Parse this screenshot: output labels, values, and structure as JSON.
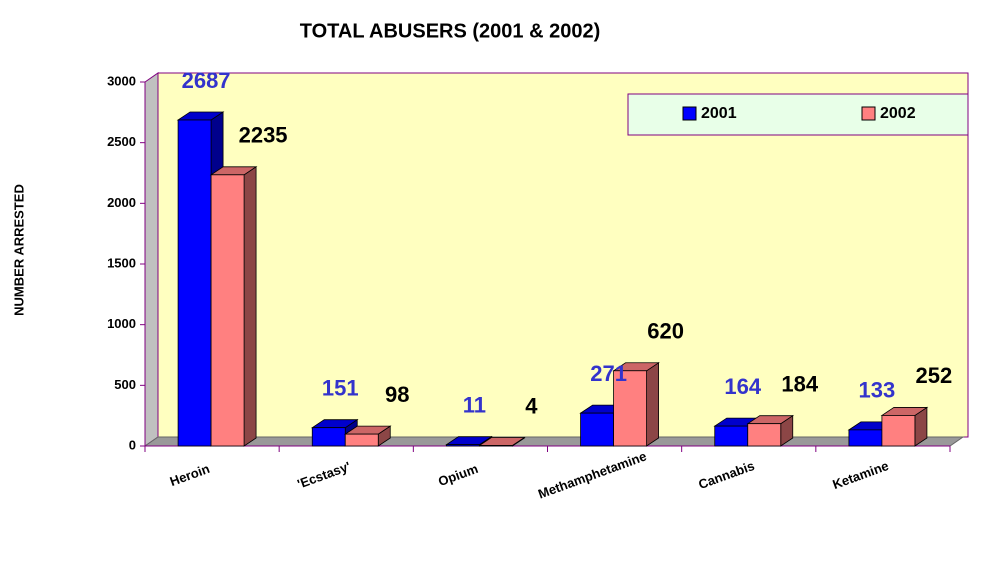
{
  "chart_data": {
    "type": "bar3d",
    "title": "TOTAL ABUSERS (2001 & 2002)",
    "y_label": "NUMBER ARRESTED",
    "categories": [
      "Heroin",
      "'Ecstasy'",
      "Opium",
      "Methamphetamine",
      "Cannabis",
      "Ketamine"
    ],
    "series": [
      {
        "name": "2001",
        "color": "#0000ff",
        "label_color": "#3333cc",
        "values": [
          2687,
          151,
          11,
          271,
          164,
          133
        ]
      },
      {
        "name": "2002",
        "color": "#ff8080",
        "label_color": "#000000",
        "values": [
          2235,
          98,
          4,
          620,
          184,
          252
        ]
      }
    ],
    "ylim": [
      0,
      3000
    ],
    "yticks": [
      0,
      500,
      1000,
      1500,
      2000,
      2500,
      3000
    ],
    "legend": "top-right"
  }
}
